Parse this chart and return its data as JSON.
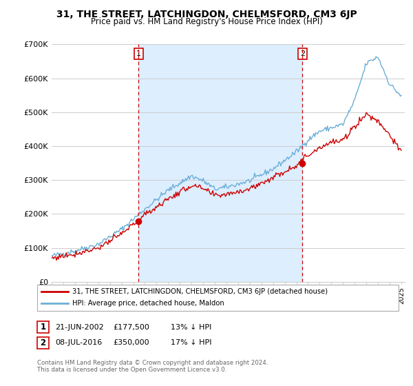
{
  "title": "31, THE STREET, LATCHINGDON, CHELMSFORD, CM3 6JP",
  "subtitle": "Price paid vs. HM Land Registry's House Price Index (HPI)",
  "ylim": [
    0,
    700000
  ],
  "yticks": [
    0,
    100000,
    200000,
    300000,
    400000,
    500000,
    600000,
    700000
  ],
  "ytick_labels": [
    "£0",
    "£100K",
    "£200K",
    "£300K",
    "£400K",
    "£500K",
    "£600K",
    "£700K"
  ],
  "sale1_date": 2002.47,
  "sale1_price": 177500,
  "sale2_date": 2016.52,
  "sale2_price": 350000,
  "legend_line1": "31, THE STREET, LATCHINGDON, CHELMSFORD, CM3 6JP (detached house)",
  "legend_line2": "HPI: Average price, detached house, Maldon",
  "footer": "Contains HM Land Registry data © Crown copyright and database right 2024.\nThis data is licensed under the Open Government Licence v3.0.",
  "hpi_color": "#6baed6",
  "price_color": "#cc0000",
  "vline_color": "#cc0000",
  "background_color": "#ffffff",
  "grid_color": "#cccccc",
  "shade_color": "#ddeeff"
}
